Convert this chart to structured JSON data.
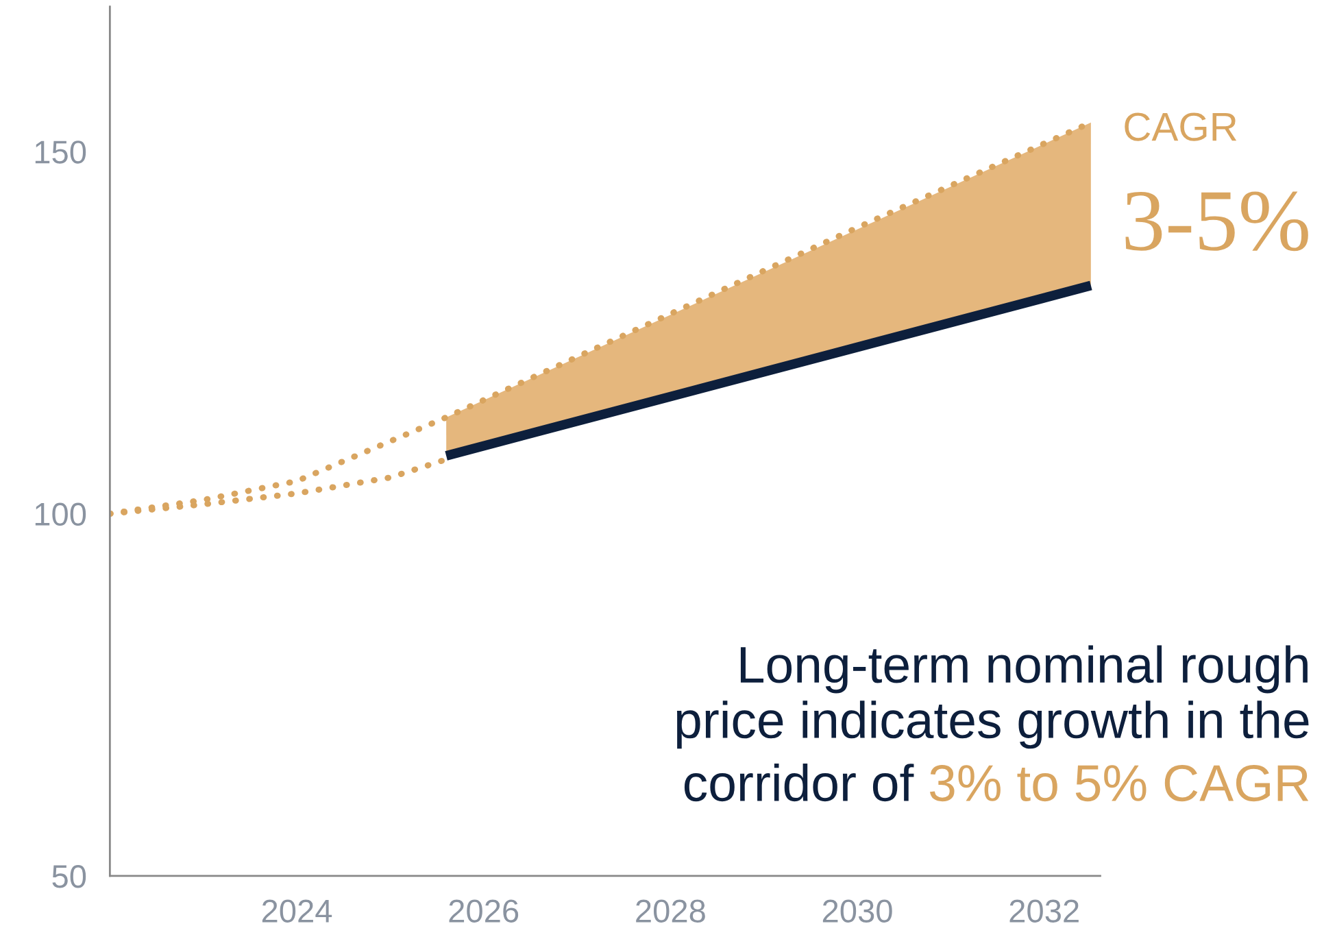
{
  "chart_data": {
    "type": "line",
    "xlim": [
      2022,
      2032.6
    ],
    "xticks": [
      2024,
      2026,
      2028,
      2030,
      2032
    ],
    "ylim": [
      50,
      170
    ],
    "yticks": [
      50,
      100,
      150
    ],
    "grid": false,
    "legend": false,
    "marker": "none",
    "series": [
      {
        "color": "#d9a560",
        "line_style": "dotted",
        "x": [
          2022,
          2023,
          2024,
          2025,
          2025.6,
          2030,
          2032.5
        ],
        "values": [
          100,
          101.9,
          104.5,
          110,
          113.3,
          139.5,
          154
        ]
      },
      {
        "color": "#d9a560",
        "line_style": "dotted",
        "x": [
          2022,
          2023,
          2024,
          2025,
          2025.6
        ],
        "values": [
          100,
          101.3,
          102.8,
          105,
          107.5
        ]
      },
      {
        "color": "#0d1f3c",
        "line_style": "solid",
        "x": [
          2025.6,
          2032.5
        ],
        "values": [
          108,
          131.5
        ],
        "lower": [
          108,
          131.5
        ],
        "upper": [
          113.3,
          154
        ]
      }
    ],
    "annotations": [
      "CAGR",
      "3-5%",
      "Long-term nominal rough\nprice indicates growth in the",
      "corridor of",
      "3% to 5% CAGR"
    ]
  }
}
